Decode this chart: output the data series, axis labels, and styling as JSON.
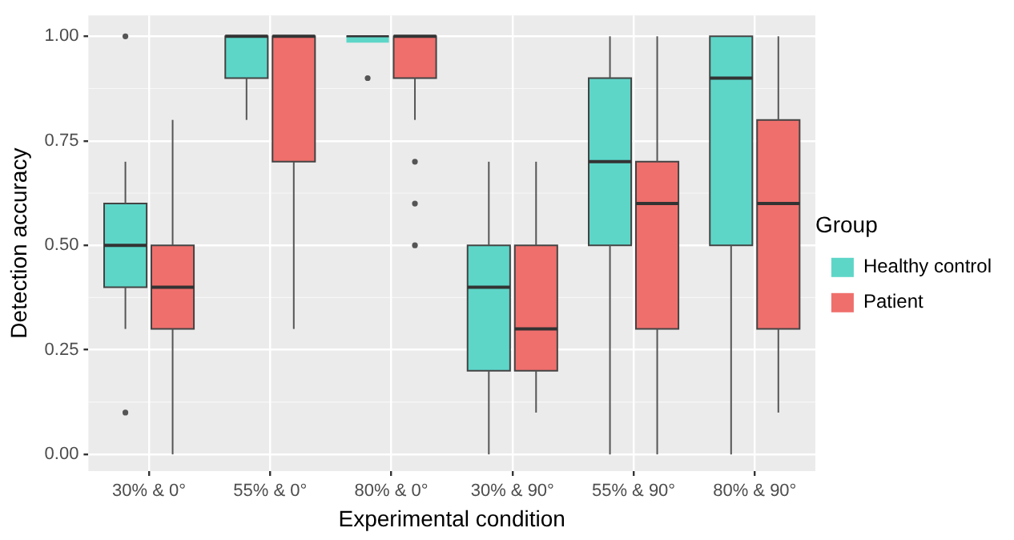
{
  "chart_data": {
    "type": "box",
    "xlabel": "Experimental condition",
    "ylabel": "Detection accuracy",
    "legend_title": "Group",
    "legend": "right",
    "grid": true,
    "categories": [
      "30% & 0°",
      "55% & 0°",
      "80% & 0°",
      "30% & 90°",
      "55% & 90°",
      "80% & 90°"
    ],
    "ylim": [
      -0.04,
      1.05
    ],
    "yticks": [
      {
        "value": 0,
        "label": "0.00"
      },
      {
        "value": 0.25,
        "label": "0.25"
      },
      {
        "value": 0.5,
        "label": "0.50"
      },
      {
        "value": 0.75,
        "label": "0.75"
      },
      {
        "value": 1,
        "label": "1.00"
      }
    ],
    "series": [
      {
        "name": "Healthy control",
        "color": "#5dd6c8",
        "boxes": [
          {
            "low": 0.3,
            "q1": 0.4,
            "median": 0.5,
            "q3": 0.6,
            "high": 0.7,
            "outliers": [
              1.0,
              0.1
            ]
          },
          {
            "low": 0.8,
            "q1": 0.9,
            "median": 1,
            "q3": 1,
            "high": 1
          },
          {
            "low": 1,
            "q1": 1,
            "median": 1,
            "q3": 1,
            "high": 1,
            "outliers": [
              0.9
            ]
          },
          {
            "low": 0,
            "q1": 0.2,
            "median": 0.4,
            "q3": 0.5,
            "high": 0.7
          },
          {
            "low": 0,
            "q1": 0.5,
            "median": 0.7,
            "q3": 0.9,
            "high": 1
          },
          {
            "low": 0,
            "q1": 0.5,
            "median": 0.9,
            "q3": 1,
            "high": 1
          }
        ]
      },
      {
        "name": "Patient",
        "color": "#ef6f6c",
        "boxes": [
          {
            "low": 0,
            "q1": 0.3,
            "median": 0.4,
            "q3": 0.5,
            "high": 0.8
          },
          {
            "low": 0.3,
            "q1": 0.7,
            "median": 1,
            "q3": 1,
            "high": 1
          },
          {
            "low": 0.8,
            "q1": 0.9,
            "median": 1,
            "q3": 1,
            "high": 1,
            "outliers": [
              0.7,
              0.6,
              0.5
            ]
          },
          {
            "low": 0.1,
            "q1": 0.2,
            "median": 0.3,
            "q3": 0.5,
            "high": 0.7
          },
          {
            "low": 0,
            "q1": 0.3,
            "median": 0.6,
            "q3": 0.7,
            "high": 1
          },
          {
            "low": 0.1,
            "q1": 0.3,
            "median": 0.6,
            "q3": 0.8,
            "high": 1
          }
        ]
      }
    ]
  }
}
